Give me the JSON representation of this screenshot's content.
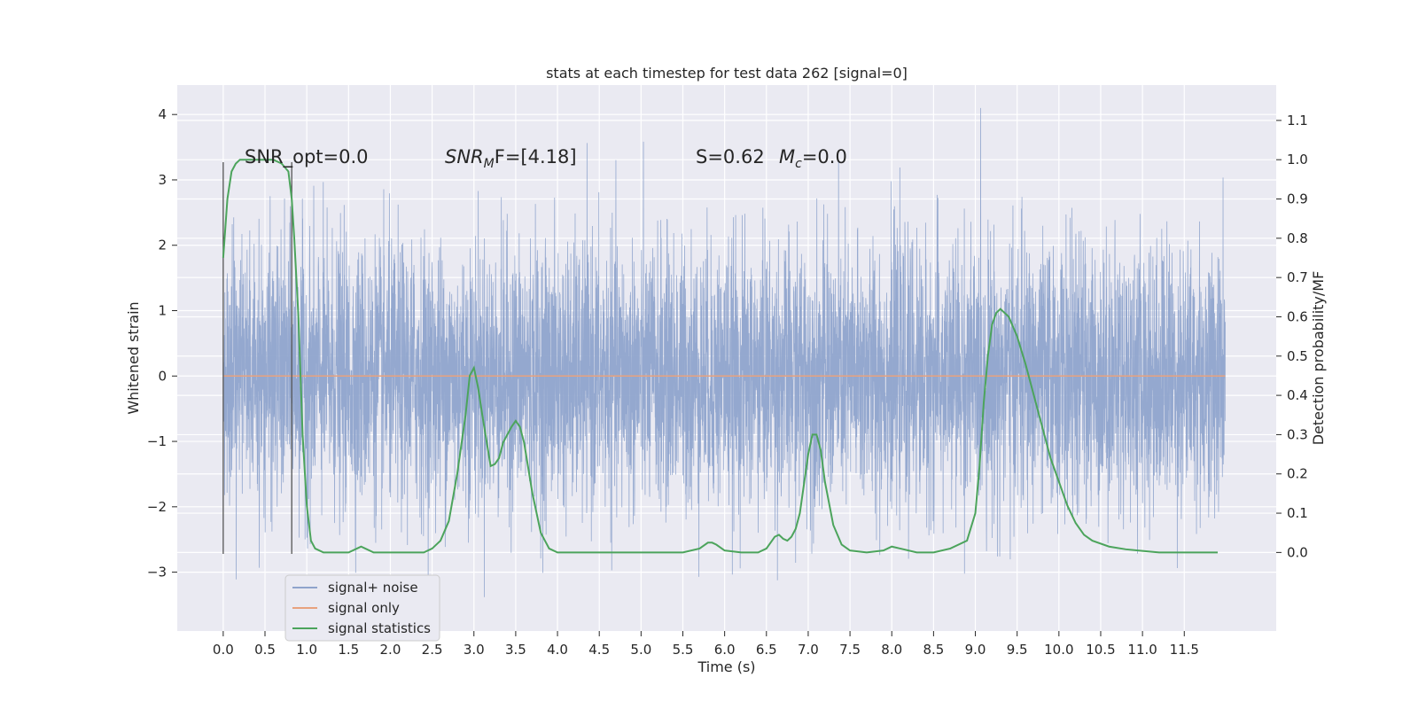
{
  "chart_data": {
    "type": "line",
    "title": "stats at each timestep for test data 262 [signal=0]",
    "xlabel": "Time (s)",
    "ylabel": "Whitened strain",
    "y2label": "Detection probability/MF",
    "xlim": [
      -0.55,
      12.6
    ],
    "ylim": [
      -3.9,
      4.45
    ],
    "y2lim": [
      -0.2,
      1.19
    ],
    "xticks": [
      0.0,
      0.5,
      1.0,
      1.5,
      2.0,
      2.5,
      3.0,
      3.5,
      4.0,
      4.5,
      5.0,
      5.5,
      6.0,
      6.5,
      7.0,
      7.5,
      8.0,
      8.5,
      9.0,
      9.5,
      10.0,
      10.5,
      11.0,
      11.5
    ],
    "xtick_labels": [
      "0.0",
      "0.5",
      "1.0",
      "1.5",
      "2.0",
      "2.5",
      "3.0",
      "3.5",
      "4.0",
      "4.5",
      "5.0",
      "5.5",
      "6.0",
      "6.5",
      "7.0",
      "7.5",
      "8.0",
      "8.5",
      "9.0",
      "9.5",
      "10.0",
      "10.5",
      "11.0",
      "11.5"
    ],
    "yticks": [
      -3,
      -2,
      -1,
      0,
      1,
      2,
      3,
      4
    ],
    "ytick_labels": [
      "−3",
      "−2",
      "−1",
      "0",
      "1",
      "2",
      "3",
      "4"
    ],
    "y2ticks": [
      0.0,
      0.1,
      0.2,
      0.3,
      0.4,
      0.5,
      0.6,
      0.7,
      0.8,
      0.9,
      1.0,
      1.1
    ],
    "y2tick_labels": [
      "0.0",
      "0.1",
      "0.2",
      "0.3",
      "0.4",
      "0.5",
      "0.6",
      "0.7",
      "0.8",
      "0.9",
      "1.0",
      "1.1"
    ],
    "grid": true,
    "legend_position": "lower-left",
    "annotations": {
      "snr_opt": "SNR_opt=0.0",
      "snr_mf_prefix": "SNR",
      "snr_mf_sub": "M",
      "snr_mf_suffix": "F=[4.18]",
      "s_value": "S=0.62",
      "mc_prefix": "M",
      "mc_sub": "c",
      "mc_suffix": "=0.0"
    },
    "vlines": [
      0.0,
      0.82
    ],
    "series": [
      {
        "name": "signal+ noise",
        "color": "#8fa4cc",
        "axis": "left",
        "t_start": 0.0,
        "t_end": 11.99,
        "std": 1.0,
        "min": -3.5,
        "max": 4.1
      },
      {
        "name": "signal only",
        "color": "#e8a27e",
        "axis": "left",
        "x": [
          0.0,
          11.99
        ],
        "y": [
          0.0,
          0.0
        ]
      },
      {
        "name": "signal statistics",
        "color": "#4ca45c",
        "axis": "right",
        "x": [
          0.0,
          0.05,
          0.1,
          0.15,
          0.2,
          0.3,
          0.4,
          0.5,
          0.6,
          0.7,
          0.78,
          0.82,
          0.85,
          0.9,
          0.95,
          1.0,
          1.05,
          1.1,
          1.2,
          1.4,
          1.5,
          1.6,
          1.65,
          1.7,
          1.8,
          2.0,
          2.2,
          2.4,
          2.5,
          2.6,
          2.7,
          2.8,
          2.9,
          2.95,
          3.0,
          3.05,
          3.1,
          3.2,
          3.25,
          3.3,
          3.35,
          3.45,
          3.5,
          3.55,
          3.6,
          3.7,
          3.8,
          3.9,
          4.0,
          4.5,
          5.0,
          5.5,
          5.7,
          5.8,
          5.85,
          5.9,
          6.0,
          6.2,
          6.4,
          6.5,
          6.6,
          6.65,
          6.7,
          6.75,
          6.8,
          6.85,
          6.9,
          7.0,
          7.05,
          7.1,
          7.15,
          7.2,
          7.3,
          7.4,
          7.5,
          7.7,
          7.9,
          8.0,
          8.1,
          8.3,
          8.5,
          8.7,
          8.9,
          9.0,
          9.05,
          9.1,
          9.15,
          9.2,
          9.25,
          9.3,
          9.35,
          9.4,
          9.5,
          9.6,
          9.7,
          9.8,
          9.9,
          10.0,
          10.1,
          10.2,
          10.3,
          10.4,
          10.6,
          10.8,
          11.0,
          11.2,
          11.5,
          11.9
        ],
        "y": [
          0.75,
          0.9,
          0.97,
          0.99,
          1.0,
          1.0,
          1.0,
          1.0,
          1.0,
          0.99,
          0.97,
          0.9,
          0.8,
          0.6,
          0.3,
          0.12,
          0.03,
          0.01,
          0.0,
          0.0,
          0.0,
          0.01,
          0.015,
          0.01,
          0.0,
          0.0,
          0.0,
          0.0,
          0.01,
          0.03,
          0.08,
          0.2,
          0.35,
          0.45,
          0.47,
          0.42,
          0.35,
          0.22,
          0.225,
          0.24,
          0.28,
          0.32,
          0.335,
          0.32,
          0.28,
          0.15,
          0.05,
          0.01,
          0.0,
          0.0,
          0.0,
          0.0,
          0.01,
          0.025,
          0.025,
          0.02,
          0.005,
          0.0,
          0.0,
          0.01,
          0.04,
          0.045,
          0.035,
          0.03,
          0.04,
          0.06,
          0.1,
          0.25,
          0.3,
          0.3,
          0.26,
          0.18,
          0.07,
          0.02,
          0.005,
          0.0,
          0.005,
          0.015,
          0.01,
          0.0,
          0.0,
          0.01,
          0.03,
          0.1,
          0.22,
          0.38,
          0.5,
          0.58,
          0.61,
          0.62,
          0.61,
          0.6,
          0.55,
          0.48,
          0.4,
          0.32,
          0.24,
          0.18,
          0.12,
          0.075,
          0.045,
          0.03,
          0.015,
          0.008,
          0.004,
          0.0,
          0.0,
          0.0
        ]
      }
    ]
  }
}
